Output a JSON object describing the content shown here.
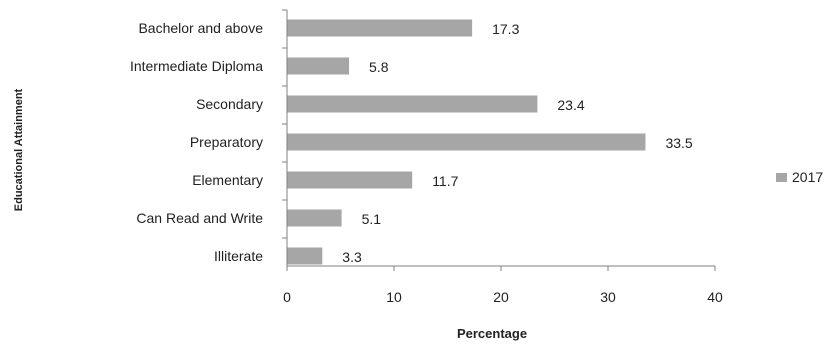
{
  "chart_data": {
    "type": "bar",
    "orientation": "horizontal",
    "title": "",
    "xlabel": "Percentage",
    "ylabel": "Educational Attainment",
    "xlim": [
      0,
      40
    ],
    "x_ticks": [
      0,
      10,
      20,
      30,
      40
    ],
    "grid": false,
    "legend_position": "right",
    "categories": [
      "Bachelor and above",
      "Intermediate Diploma",
      "Secondary",
      "Preparatory",
      "Elementary",
      "Can Read and Write",
      "Illiterate"
    ],
    "series": [
      {
        "name": "2017",
        "values": [
          17.3,
          5.8,
          23.4,
          33.5,
          11.7,
          5.1,
          3.3
        ],
        "color": "#a6a6a6"
      }
    ],
    "data_labels": [
      "17.3",
      "5.8",
      "23.4",
      "33.5",
      "11.7",
      "5.1",
      "3.3"
    ],
    "colors": {
      "axis": "#808080",
      "text": "#222222",
      "bar": "#a6a6a6"
    }
  }
}
